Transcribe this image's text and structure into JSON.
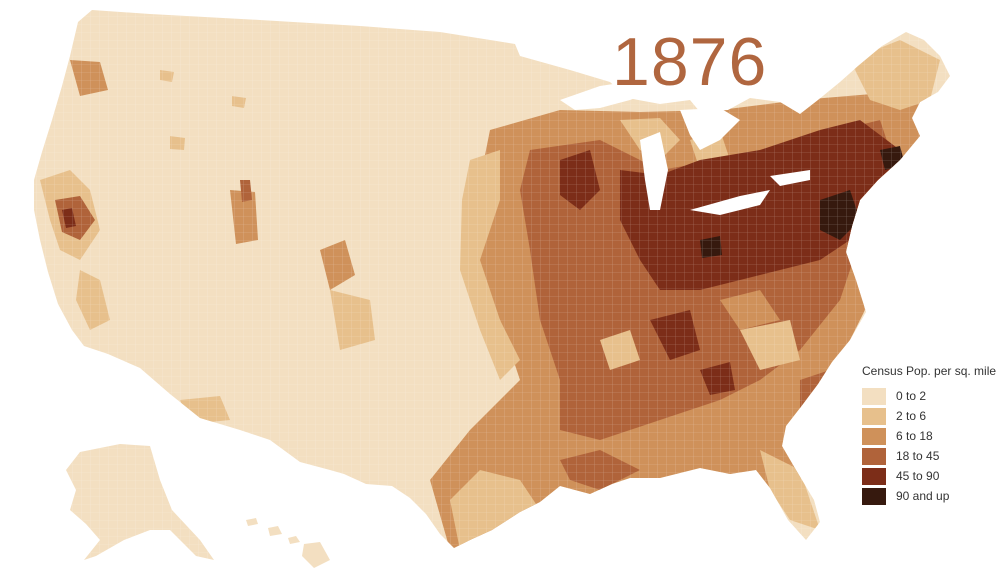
{
  "year_label": "1876",
  "legend": {
    "title": "Census Pop. per sq. mile",
    "items": [
      {
        "label": "0 to 2",
        "color": "#f3dfc1"
      },
      {
        "label": "2 to 6",
        "color": "#e7c08c"
      },
      {
        "label": "6 to 18",
        "color": "#cf915a"
      },
      {
        "label": "18 to 45",
        "color": "#b0633a"
      },
      {
        "label": "45 to 90",
        "color": "#7c2d18"
      },
      {
        "label": "90 and up",
        "color": "#36190e"
      }
    ]
  },
  "map": {
    "subject": "United States county population density",
    "regions": [
      "Contiguous United States",
      "Alaska",
      "Hawaii"
    ]
  }
}
